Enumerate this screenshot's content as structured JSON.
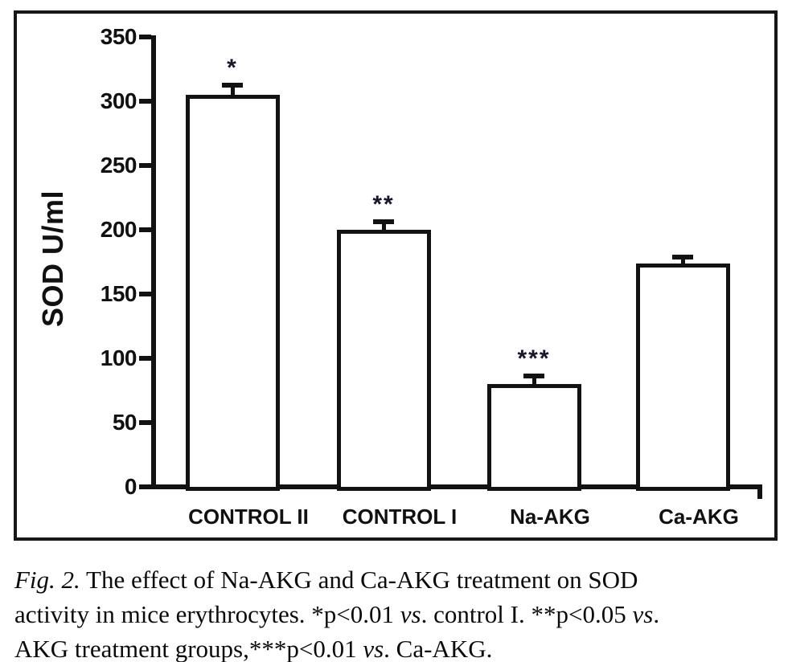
{
  "figure": {
    "caption_text": "Fig. 2. The effect of Na-AKG and Ca-AKG treatment on SOD activity in mice erythrocytes. *p<0.01 vs. control I. **p<0.05 vs. AKG treatment groups,***p<0.01 vs. Ca-AKG.",
    "caption_lines": [
      [
        {
          "t": "Fig. 2.",
          "i": true
        },
        {
          "t": " The effect of Na-AKG and Ca-AKG treatment on SOD",
          "i": false
        }
      ],
      [
        {
          "t": "activity in mice erythrocytes. *p<0.01 ",
          "i": false
        },
        {
          "t": "vs",
          "i": true
        },
        {
          "t": ". control I. **p<0.05 ",
          "i": false
        },
        {
          "t": "vs",
          "i": true
        },
        {
          "t": ".",
          "i": false
        }
      ],
      [
        {
          "t": "AKG treatment groups,***p<0.01 ",
          "i": false
        },
        {
          "t": "vs",
          "i": true
        },
        {
          "t": ". Ca-AKG.",
          "i": false
        }
      ]
    ]
  },
  "chart_data": {
    "type": "bar",
    "title": "",
    "xlabel": "",
    "ylabel": "SOD U/ml",
    "ylim": [
      0,
      350
    ],
    "yticks": [
      0,
      50,
      100,
      150,
      200,
      250,
      300,
      350
    ],
    "grid": false,
    "legend": false,
    "categories": [
      "CONTROL II",
      "CONTROL I",
      "Na-AKG",
      "Ca-AKG"
    ],
    "values": [
      305,
      200,
      80,
      174
    ],
    "errors": [
      7.5,
      6,
      6,
      4.5
    ],
    "significance": [
      "*",
      "**",
      "***",
      ""
    ],
    "bar_fill": "#ffffff",
    "ink_color": "#121212",
    "annotation_color": "#16162e"
  }
}
